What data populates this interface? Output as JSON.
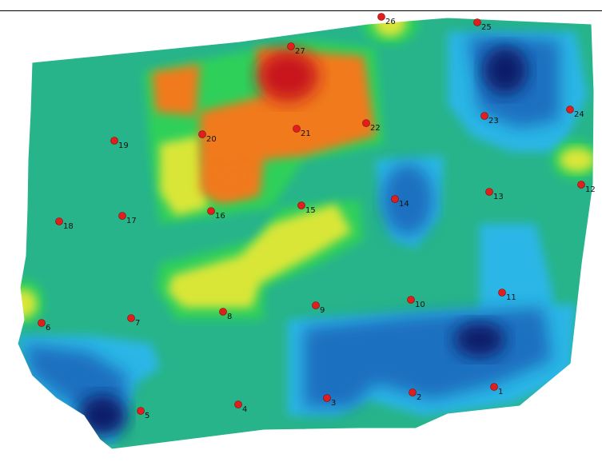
{
  "map": {
    "colors": {
      "base_green": "#27b48a",
      "light_blue": "#2cb6e6",
      "mid_blue": "#1e6fc0",
      "dark_blue": "#0c1f6b",
      "green": "#2fd05a",
      "yellow": "#d9e637",
      "orange": "#f07a1f",
      "red": "#c8141c",
      "sample_point": "#e01e1e"
    },
    "points": [
      {
        "label": "1"
      },
      {
        "label": "2"
      },
      {
        "label": "3"
      },
      {
        "label": "4"
      },
      {
        "label": "5"
      },
      {
        "label": "6"
      },
      {
        "label": "7"
      },
      {
        "label": "8"
      },
      {
        "label": "9"
      },
      {
        "label": "10"
      },
      {
        "label": "11"
      },
      {
        "label": "12"
      },
      {
        "label": "13"
      },
      {
        "label": "14"
      },
      {
        "label": "15"
      },
      {
        "label": "16"
      },
      {
        "label": "17"
      },
      {
        "label": "18"
      },
      {
        "label": "19"
      },
      {
        "label": "20"
      },
      {
        "label": "21"
      },
      {
        "label": "22"
      },
      {
        "label": "23"
      },
      {
        "label": "24"
      },
      {
        "label": "25"
      },
      {
        "label": "26"
      },
      {
        "label": "27"
      }
    ]
  }
}
